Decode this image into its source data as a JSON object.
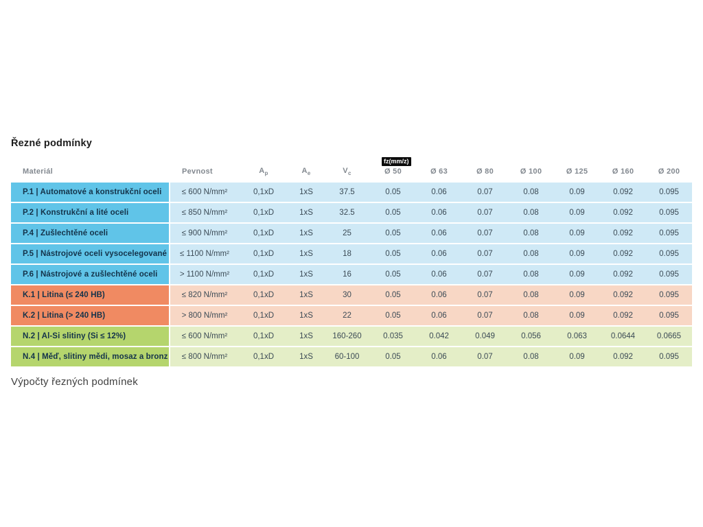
{
  "page": {
    "title": "Řezné podmínky",
    "footer_heading": "Výpočty řezných podmínek"
  },
  "colors": {
    "blue_strong": "#60c4e8",
    "blue_light": "#cfe9f6",
    "orange_strong": "#f08a62",
    "orange_light": "#f8d7c5",
    "green_strong": "#b5d56d",
    "green_light": "#e4eec7",
    "tooltip_bg": "#0c0c0c",
    "material_text": "#14334a",
    "header_text": "#82888f"
  },
  "table": {
    "tooltip": "fz(mm/z)",
    "headers": {
      "material": "Materiál",
      "pevnost": "Pevnost",
      "ap_base": "A",
      "ap_sub": "p",
      "ae_base": "A",
      "ae_sub": "e",
      "vc_base": "V",
      "vc_sub": "c",
      "diameters": [
        "Ø 50",
        "Ø 63",
        "Ø 80",
        "Ø 100",
        "Ø 125",
        "Ø 160",
        "Ø 200"
      ]
    },
    "rows": [
      {
        "group": "blue",
        "material": "P.1 | Automatové a konstrukční oceli",
        "pevnost": "≤ 600 N/mm²",
        "ap": "0,1xD",
        "ae": "1xS",
        "vc": "37.5",
        "fz": [
          "0.05",
          "0.06",
          "0.07",
          "0.08",
          "0.09",
          "0.092",
          "0.095"
        ]
      },
      {
        "group": "blue",
        "material": "P.2 | Konstrukční a lité oceli",
        "pevnost": "≤ 850 N/mm²",
        "ap": "0,1xD",
        "ae": "1xS",
        "vc": "32.5",
        "fz": [
          "0.05",
          "0.06",
          "0.07",
          "0.08",
          "0.09",
          "0.092",
          "0.095"
        ]
      },
      {
        "group": "blue",
        "material": "P.4 | Zušlechtěné oceli",
        "pevnost": "≤ 900 N/mm²",
        "ap": "0,1xD",
        "ae": "1xS",
        "vc": "25",
        "fz": [
          "0.05",
          "0.06",
          "0.07",
          "0.08",
          "0.09",
          "0.092",
          "0.095"
        ]
      },
      {
        "group": "blue",
        "material": "P.5 | Nástrojové oceli vysocelegované",
        "pevnost": "≤ 1100 N/mm²",
        "ap": "0,1xD",
        "ae": "1xS",
        "vc": "18",
        "fz": [
          "0.05",
          "0.06",
          "0.07",
          "0.08",
          "0.09",
          "0.092",
          "0.095"
        ]
      },
      {
        "group": "blue",
        "material": "P.6 | Nástrojové a zušlechtěné oceli",
        "pevnost": "> 1100 N/mm²",
        "ap": "0,1xD",
        "ae": "1xS",
        "vc": "16",
        "fz": [
          "0.05",
          "0.06",
          "0.07",
          "0.08",
          "0.09",
          "0.092",
          "0.095"
        ]
      },
      {
        "group": "orange",
        "material": "K.1 | Litina (≤ 240 HB)",
        "pevnost": "≤ 820 N/mm²",
        "ap": "0,1xD",
        "ae": "1xS",
        "vc": "30",
        "fz": [
          "0.05",
          "0.06",
          "0.07",
          "0.08",
          "0.09",
          "0.092",
          "0.095"
        ]
      },
      {
        "group": "orange",
        "material": "K.2 | Litina (> 240 HB)",
        "pevnost": "> 800 N/mm²",
        "ap": "0,1xD",
        "ae": "1xS",
        "vc": "22",
        "fz": [
          "0.05",
          "0.06",
          "0.07",
          "0.08",
          "0.09",
          "0.092",
          "0.095"
        ]
      },
      {
        "group": "green",
        "material": "N.2 | Al-Si slitiny (Si ≤ 12%)",
        "pevnost": "≤ 600 N/mm²",
        "ap": "0,1xD",
        "ae": "1xS",
        "vc": "160-260",
        "fz": [
          "0.035",
          "0.042",
          "0.049",
          "0.056",
          "0.063",
          "0.0644",
          "0.0665"
        ]
      },
      {
        "group": "green",
        "material": "N.4 | Měď, slitiny mědi, mosaz a bronz",
        "pevnost": "≤ 800 N/mm²",
        "ap": "0,1xD",
        "ae": "1xS",
        "vc": "60-100",
        "fz": [
          "0.05",
          "0.06",
          "0.07",
          "0.08",
          "0.09",
          "0.092",
          "0.095"
        ]
      }
    ]
  }
}
